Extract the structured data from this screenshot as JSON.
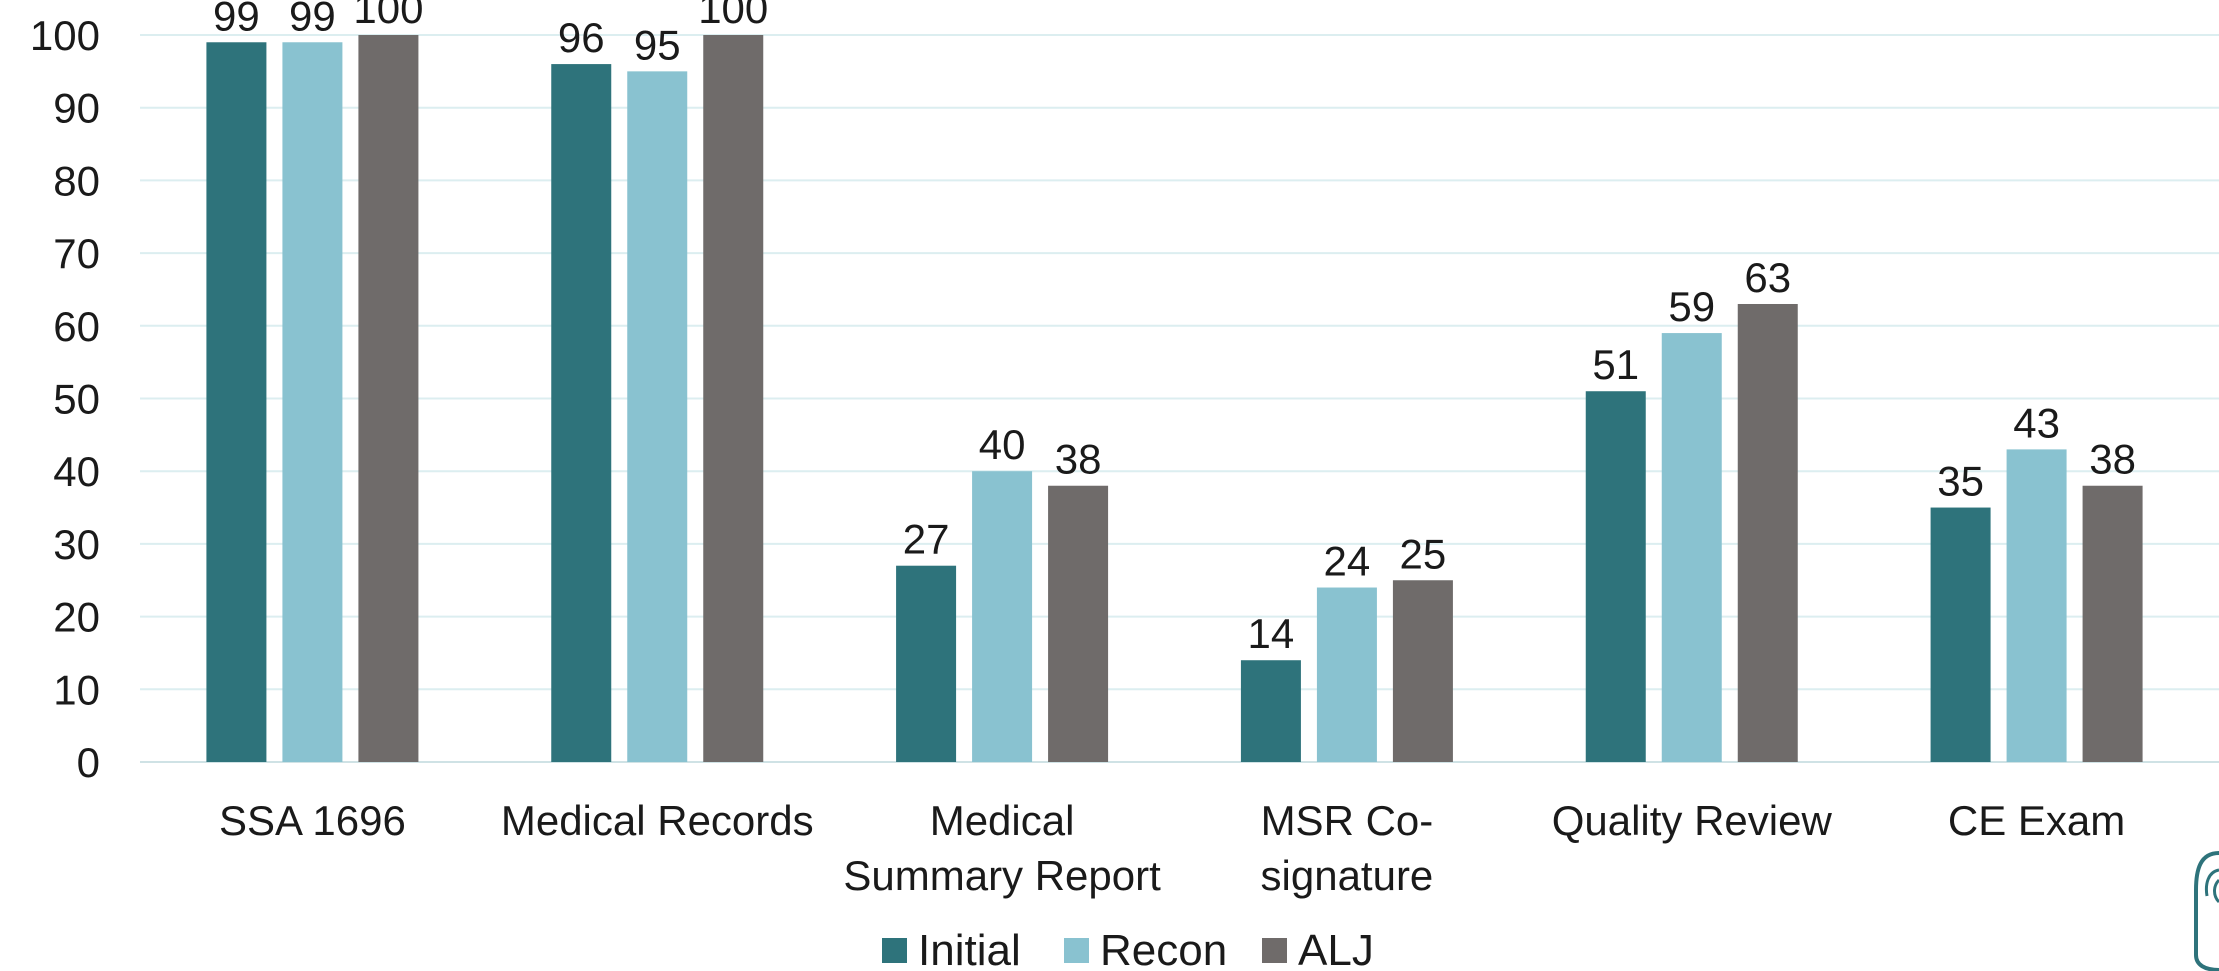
{
  "chart_data": {
    "type": "bar",
    "categories": [
      [
        "SSA 1696"
      ],
      [
        "Medical Records"
      ],
      [
        "Medical",
        "Summary Report"
      ],
      [
        "MSR Co-",
        "signature"
      ],
      [
        "Quality Review"
      ],
      [
        "CE Exam"
      ]
    ],
    "series": [
      {
        "name": "Initial",
        "color": "#2e737b",
        "values": [
          99,
          96,
          27,
          14,
          51,
          35
        ]
      },
      {
        "name": "Recon",
        "color": "#89c2d0",
        "values": [
          99,
          95,
          40,
          24,
          59,
          43
        ]
      },
      {
        "name": "ALJ",
        "color": "#6f6b6a",
        "values": [
          100,
          100,
          38,
          25,
          63,
          38
        ]
      }
    ],
    "ylim": [
      0,
      100
    ],
    "yticks": [
      0,
      10,
      20,
      30,
      40,
      50,
      60,
      70,
      80,
      90,
      100
    ],
    "title": "",
    "xlabel": "",
    "ylabel": "",
    "grid": true,
    "legend_position": "bottom-center",
    "data_labels": true
  }
}
